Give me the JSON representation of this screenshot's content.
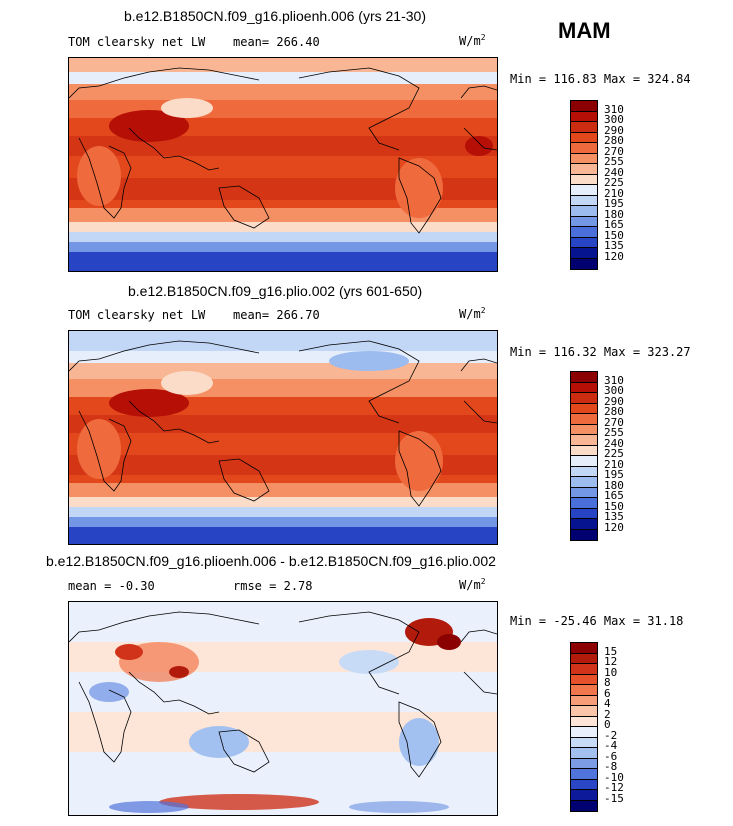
{
  "season": "MAM",
  "unit_base": "W/m",
  "unit_exp": "2",
  "panels": [
    {
      "title": "b.e12.B1850CN.f09_g16.plioenh.006 (yrs 21-30)",
      "field": "TOM clearsky net LW",
      "mean_label": "mean=",
      "mean": "266.40",
      "minmax": "Min = 116.83 Max = 324.84",
      "levels": [
        "310",
        "300",
        "290",
        "280",
        "270",
        "255",
        "240",
        "225",
        "210",
        "195",
        "180",
        "165",
        "150",
        "135",
        "120"
      ],
      "colors": [
        "#8b0000",
        "#b50f06",
        "#cc2c10",
        "#e2481c",
        "#ef6a3c",
        "#f58f64",
        "#f8b694",
        "#fbdcc8",
        "#e6eefb",
        "#c2d6f5",
        "#9cbcef",
        "#7397e4",
        "#4a6fdb",
        "#2644c4",
        "#07148f",
        "#000070"
      ]
    },
    {
      "title": "b.e12.B1850CN.f09_g16.plio.002 (yrs 601-650)",
      "field": "TOM clearsky net LW",
      "mean_label": "mean=",
      "mean": "266.70",
      "minmax": "Min = 116.32 Max = 323.27",
      "levels": [
        "310",
        "300",
        "290",
        "280",
        "270",
        "255",
        "240",
        "225",
        "210",
        "195",
        "180",
        "165",
        "150",
        "135",
        "120"
      ],
      "colors": [
        "#8b0000",
        "#b50f06",
        "#cc2c10",
        "#e2481c",
        "#ef6a3c",
        "#f58f64",
        "#f8b694",
        "#fbdcc8",
        "#e6eefb",
        "#c2d6f5",
        "#9cbcef",
        "#7397e4",
        "#4a6fdb",
        "#2644c4",
        "#07148f",
        "#000070"
      ]
    },
    {
      "title": "b.e12.B1850CN.f09_g16.plioenh.006 - b.e12.B1850CN.f09_g16.plio.002",
      "mean_label": "mean =",
      "mean": "-0.30",
      "rmse_label": "rmse =",
      "rmse": "2.78",
      "minmax": "Min = -25.46 Max =  31.18",
      "levels": [
        "15",
        "12",
        "10",
        "8",
        "6",
        "4",
        "2",
        "0",
        "-2",
        "-4",
        "-6",
        "-8",
        "-10",
        "-12",
        "-15"
      ],
      "colors": [
        "#8b0000",
        "#b21a0c",
        "#d0331a",
        "#e6512b",
        "#f2764c",
        "#f79e78",
        "#fac5a8",
        "#fde6d8",
        "#eaf1fc",
        "#c8dbf6",
        "#a3c1f0",
        "#7c9ce6",
        "#5173dc",
        "#2a47c6",
        "#0d1a9a",
        "#000070"
      ]
    }
  ]
}
